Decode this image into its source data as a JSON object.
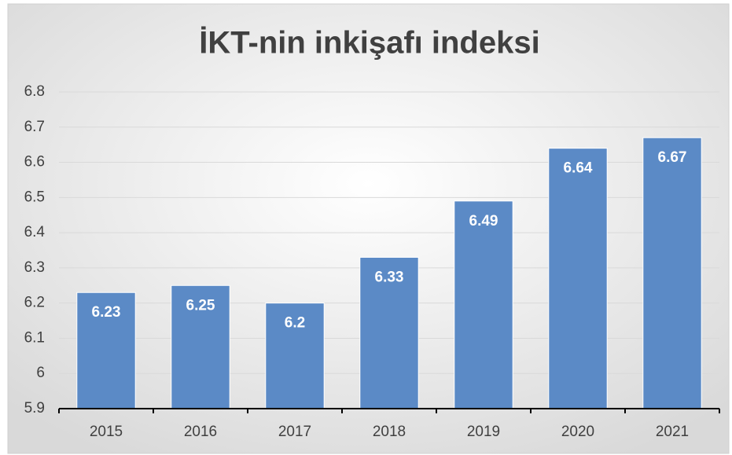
{
  "chart_data": {
    "type": "bar",
    "title": "İKT-nin inkişafı indeksi",
    "categories": [
      "2015",
      "2016",
      "2017",
      "2018",
      "2019",
      "2020",
      "2021"
    ],
    "values": [
      6.23,
      6.25,
      6.2,
      6.33,
      6.49,
      6.64,
      6.67
    ],
    "color": "#5b8ac6",
    "ylim": [
      5.9,
      6.8
    ],
    "yticks": [
      5.9,
      6,
      6.1,
      6.2,
      6.3,
      6.4,
      6.5,
      6.6,
      6.7,
      6.8
    ],
    "grid": true
  }
}
